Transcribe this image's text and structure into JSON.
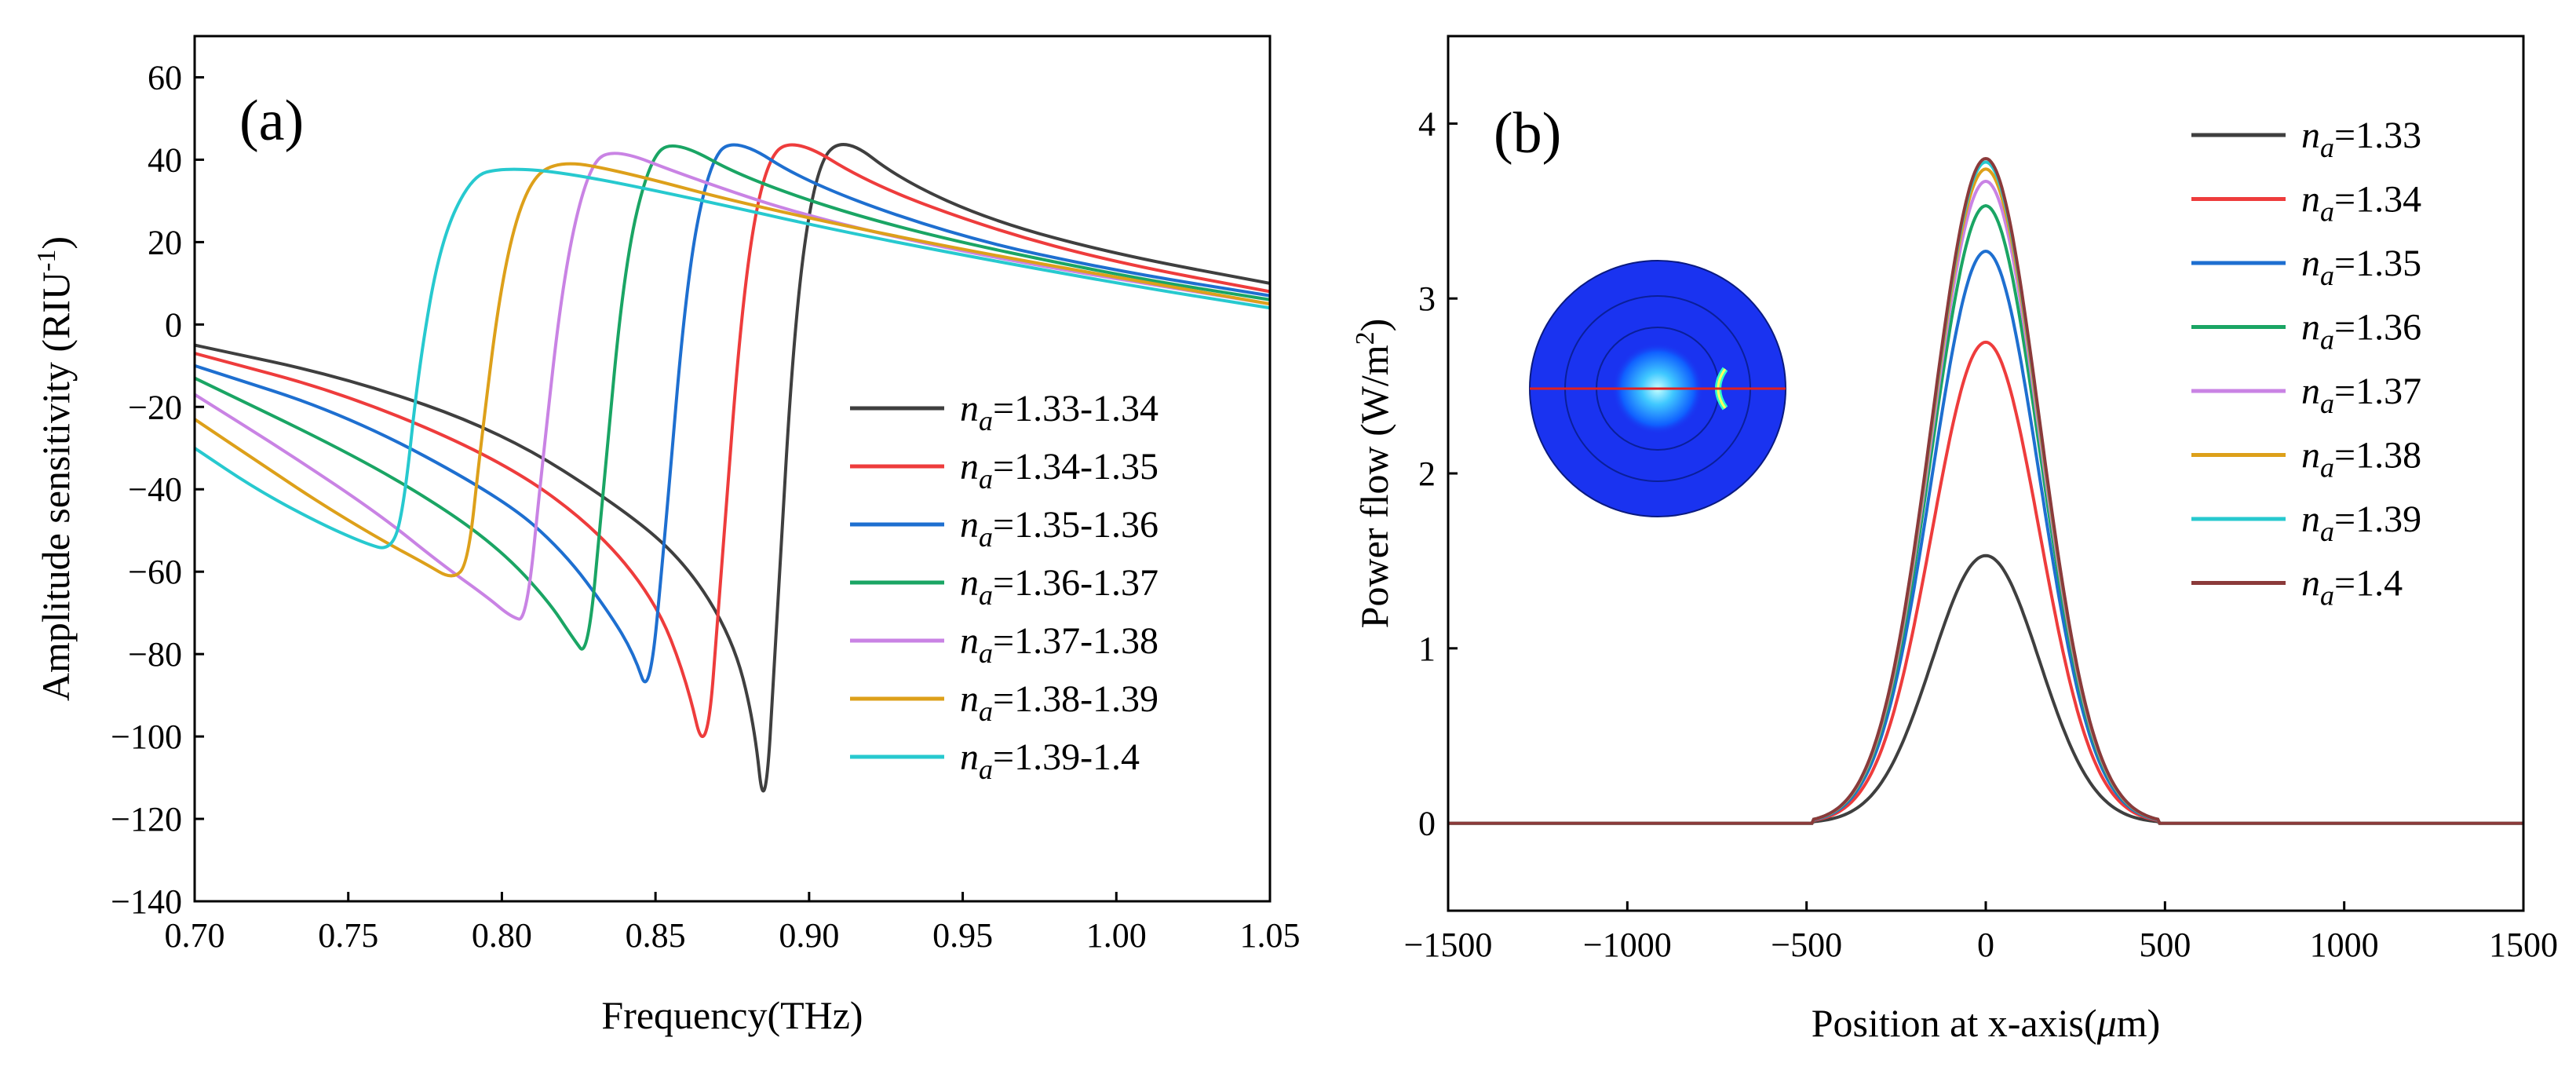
{
  "chart_data": [
    {
      "panel_label": "(a)",
      "type": "line",
      "xlabel": "Frequency(THz)",
      "ylabel": "Amplitude sensitivity (RIU",
      "ylabel_sup": "-1",
      "ylabel_end": ")",
      "xlim": [
        0.7,
        1.05
      ],
      "ylim": [
        -140,
        70
      ],
      "xticks": [
        "0.70",
        "0.75",
        "0.80",
        "0.85",
        "0.90",
        "0.95",
        "1.00",
        "1.05"
      ],
      "xtick_values": [
        0.7,
        0.75,
        0.8,
        0.85,
        0.9,
        0.95,
        1.0,
        1.05
      ],
      "yticks": [
        "60",
        "40",
        "20",
        "0",
        "−20",
        "−40",
        "−60",
        "−80",
        "−100",
        "−120",
        "−140"
      ],
      "ytick_values": [
        60,
        40,
        20,
        0,
        -20,
        -40,
        -60,
        -80,
        -100,
        -120,
        -140
      ],
      "legend_position": "right",
      "series": [
        {
          "name_var": "n",
          "name_sub": "a",
          "name_rest": "=1.33-1.34",
          "color": "#3f3f3f",
          "x": [
            0.7,
            0.75,
            0.8,
            0.84,
            0.86,
            0.875,
            0.882,
            0.8855,
            0.889,
            0.895,
            0.902,
            0.911,
            0.93,
            0.96,
            1.0,
            1.05
          ],
          "y": [
            -5,
            -13,
            -26,
            -45,
            -58,
            -76,
            -96,
            -121,
            -80,
            0,
            38,
            46,
            35,
            25,
            17,
            10
          ]
        },
        {
          "name_var": "n",
          "name_sub": "a",
          "name_rest": "=1.34-1.35",
          "color": "#ee3c3c",
          "x": [
            0.7,
            0.75,
            0.8,
            0.83,
            0.85,
            0.86,
            0.8665,
            0.871,
            0.878,
            0.885,
            0.894,
            0.92,
            0.96,
            1.0,
            1.05
          ],
          "y": [
            -7,
            -17,
            -33,
            -49,
            -67,
            -86,
            -107,
            -65,
            5,
            38,
            46,
            34,
            23,
            15,
            8
          ]
        },
        {
          "name_var": "n",
          "name_sub": "a",
          "name_rest": "=1.35-1.36",
          "color": "#1e6fd0",
          "x": [
            0.7,
            0.75,
            0.8,
            0.82,
            0.835,
            0.843,
            0.848,
            0.853,
            0.86,
            0.867,
            0.875,
            0.9,
            0.95,
            1.0,
            1.05
          ],
          "y": [
            -10,
            -22,
            -42,
            -55,
            -70,
            -80,
            -91,
            -52,
            10,
            38,
            46,
            34,
            21,
            13,
            7
          ]
        },
        {
          "name_var": "n",
          "name_sub": "a",
          "name_rest": "=1.36-1.37",
          "color": "#1aa564",
          "x": [
            0.7,
            0.75,
            0.78,
            0.8,
            0.815,
            0.823,
            0.828,
            0.833,
            0.84,
            0.848,
            0.856,
            0.88,
            0.93,
            1.0,
            1.05
          ],
          "y": [
            -13,
            -31,
            -44,
            -55,
            -67,
            -76,
            -81,
            -40,
            15,
            40,
            45,
            35,
            23,
            12,
            6
          ]
        },
        {
          "name_var": "n",
          "name_sub": "a",
          "name_rest": "=1.37-1.38",
          "color": "#c983e4",
          "x": [
            0.7,
            0.73,
            0.76,
            0.78,
            0.795,
            0.803,
            0.808,
            0.813,
            0.82,
            0.828,
            0.836,
            0.86,
            0.9,
            0.96,
            1.05
          ],
          "y": [
            -17,
            -31,
            -46,
            -58,
            -66,
            -71,
            -72,
            -35,
            12,
            38,
            43,
            36,
            26,
            16,
            5
          ]
        },
        {
          "name_var": "n",
          "name_sub": "a",
          "name_rest": "=1.38-1.39",
          "color": "#dda01a",
          "x": [
            0.7,
            0.72,
            0.74,
            0.76,
            0.775,
            0.784,
            0.789,
            0.793,
            0.8,
            0.808,
            0.818,
            0.84,
            0.88,
            0.95,
            1.05
          ],
          "y": [
            -23,
            -33,
            -43,
            -52,
            -58,
            -62,
            -58,
            -30,
            12,
            34,
            40,
            37,
            29,
            18,
            5
          ]
        },
        {
          "name_var": "n",
          "name_sub": "a",
          "name_rest": "=1.39-1.4",
          "color": "#27c9cf",
          "x": [
            0.7,
            0.72,
            0.74,
            0.755,
            0.764,
            0.768,
            0.773,
            0.78,
            0.79,
            0.8,
            0.82,
            0.86,
            0.92,
            1.0,
            1.05
          ],
          "y": [
            -30,
            -40,
            -48,
            -53,
            -55,
            -45,
            -10,
            20,
            36,
            38,
            37,
            31,
            21,
            10,
            4
          ]
        }
      ]
    },
    {
      "panel_label": "(b)",
      "type": "line",
      "xlabel": "Position at x-axis(",
      "xlabel_mu": "μ",
      "xlabel_end": "m)",
      "ylabel": "Power flow (W/m",
      "ylabel_sup": "2",
      "ylabel_end": ")",
      "xlim": [
        -1500,
        1500
      ],
      "ylim": [
        -0.5,
        4.5
      ],
      "xticks": [
        "−1500",
        "−1000",
        "−500",
        "0",
        "500",
        "1000",
        "1500"
      ],
      "xtick_values": [
        -1500,
        -1000,
        -500,
        0,
        500,
        1000,
        1500
      ],
      "yticks": [
        "0",
        "1",
        "2",
        "3",
        "4"
      ],
      "ytick_values": [
        0,
        1,
        2,
        3,
        4
      ],
      "legend_position": "right",
      "inset": "fiber-cross-section mode field with red horizontal line",
      "series": [
        {
          "name_var": "n",
          "name_sub": "a",
          "name_rest": "=1.33",
          "color": "#3f3f3f",
          "peak": 1.53
        },
        {
          "name_var": "n",
          "name_sub": "a",
          "name_rest": "=1.34",
          "color": "#ee3c3c",
          "peak": 2.75
        },
        {
          "name_var": "n",
          "name_sub": "a",
          "name_rest": "=1.35",
          "color": "#1e6fd0",
          "peak": 3.27
        },
        {
          "name_var": "n",
          "name_sub": "a",
          "name_rest": "=1.36",
          "color": "#1aa564",
          "peak": 3.53
        },
        {
          "name_var": "n",
          "name_sub": "a",
          "name_rest": "=1.37",
          "color": "#c983e4",
          "peak": 3.67
        },
        {
          "name_var": "n",
          "name_sub": "a",
          "name_rest": "=1.38",
          "color": "#dda01a",
          "peak": 3.74
        },
        {
          "name_var": "n",
          "name_sub": "a",
          "name_rest": "=1.39",
          "color": "#27c9cf",
          "peak": 3.78
        },
        {
          "name_var": "n",
          "name_sub": "a",
          "name_rest": "=1.4",
          "color": "#8b3a3a",
          "peak": 3.8
        }
      ]
    }
  ]
}
